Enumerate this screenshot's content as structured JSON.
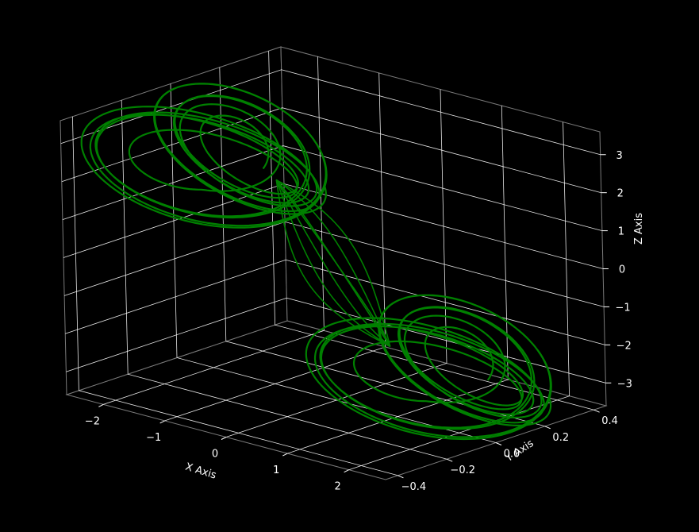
{
  "chart_data": {
    "type": "line3d",
    "title": "",
    "xlabel": "X Axis",
    "ylabel": "Y Axis",
    "zlabel": "Z Axis",
    "xlim": [
      -2.6,
      2.6
    ],
    "ylim": [
      -0.45,
      0.45
    ],
    "zlim": [
      -3.6,
      3.6
    ],
    "x_ticks": [
      -2,
      -1,
      0,
      1,
      2
    ],
    "x_tick_labels": [
      "−2",
      "−1",
      "0",
      "1",
      "2"
    ],
    "y_ticks": [
      -0.4,
      -0.2,
      0.0,
      0.2,
      0.4
    ],
    "y_tick_labels": [
      "−0.4",
      "−0.2",
      "0.0",
      "0.2",
      "0.4"
    ],
    "z_ticks": [
      -3,
      -2,
      -1,
      0,
      1,
      2,
      3
    ],
    "z_tick_labels": [
      "−3",
      "−2",
      "−1",
      "0",
      "1",
      "2",
      "3"
    ],
    "background": "#000000",
    "line_color": "#008000",
    "grid": true,
    "series": [
      {
        "description_shape": "double-scroll attractor",
        "lobes": [
          {
            "center": [
              -1.6,
              -0.05,
              2.2
            ],
            "radius_x_min": 0.35,
            "radius_x_max": 1.7,
            "radius_z_min": 0.3,
            "radius_z_max": 1.5
          },
          {
            "center": [
              1.6,
              0.05,
              -2.2
            ],
            "radius_x_min": 0.35,
            "radius_x_max": 1.7,
            "radius_z_min": 0.3,
            "radius_z_max": 1.5
          }
        ]
      }
    ]
  }
}
